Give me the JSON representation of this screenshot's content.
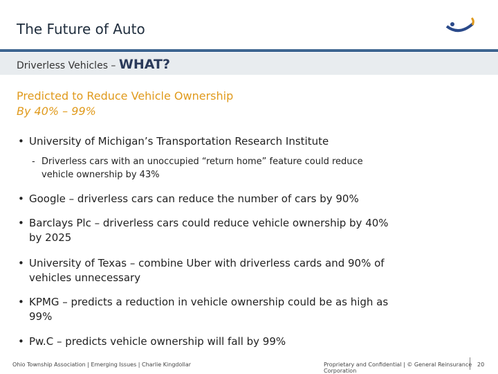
{
  "header": {
    "title": "The Future of Auto"
  },
  "subtitle": {
    "text": "Driverless Vehicles – ",
    "emphasis": "WHAT?"
  },
  "heading": {
    "line1": "Predicted to Reduce Vehicle Ownership",
    "line2": "By 40% – 99%"
  },
  "bullets": [
    {
      "text": "University of Michigan’s Transportation Research Institute",
      "sub": [
        "Driverless cars with an unoccupied “return home” feature could reduce vehicle ownership by 43%"
      ]
    },
    {
      "text": "Google – driverless cars can reduce the number of cars by 90%"
    },
    {
      "text": "Barclays Plc – driverless cars could reduce vehicle ownership by 40% by 2025"
    },
    {
      "text": "University of Texas – combine Uber with driverless cards and 90% of vehicles unnecessary"
    },
    {
      "text": "KPMG – predicts a reduction in vehicle ownership could be as high as 99%"
    },
    {
      "text": "Pw.C – predicts vehicle ownership will fall by 99%"
    }
  ],
  "footer": {
    "left": "Ohio Township Association | Emerging Issues | Charlie Kingdollar",
    "right": "Proprietary and Confidential | © General Reinsurance Corporation",
    "page": "20"
  }
}
